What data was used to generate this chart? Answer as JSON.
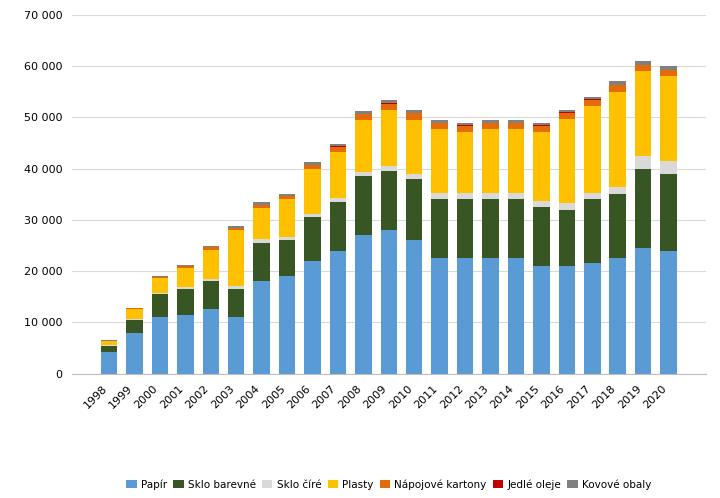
{
  "years": [
    1998,
    1999,
    2000,
    2001,
    2002,
    2003,
    2004,
    2005,
    2006,
    2007,
    2008,
    2009,
    2010,
    2011,
    2012,
    2013,
    2014,
    2015,
    2016,
    2017,
    2018,
    2019,
    2020
  ],
  "papir": [
    4200,
    8000,
    11000,
    11500,
    12500,
    11000,
    18000,
    19000,
    22000,
    24000,
    27000,
    28000,
    26000,
    22500,
    22500,
    22500,
    22500,
    21000,
    21000,
    21500,
    22500,
    24500,
    24000
  ],
  "sklo_barevne": [
    1200,
    2500,
    4500,
    5000,
    5500,
    5500,
    7500,
    7000,
    8500,
    9500,
    11500,
    11500,
    12000,
    11500,
    11500,
    11500,
    11500,
    11500,
    11000,
    12500,
    12500,
    15500,
    15000
  ],
  "sklo_cire": [
    100,
    200,
    300,
    300,
    500,
    500,
    700,
    700,
    700,
    800,
    900,
    1000,
    1000,
    1200,
    1200,
    1200,
    1200,
    1200,
    1200,
    1200,
    1500,
    2500,
    2500
  ],
  "plasty": [
    800,
    1800,
    2800,
    3800,
    5700,
    11000,
    6200,
    7300,
    8800,
    9000,
    10000,
    11000,
    10500,
    12500,
    12000,
    12500,
    12500,
    13500,
    16500,
    17000,
    18500,
    16500,
    16500
  ],
  "napojove_kartony": [
    100,
    200,
    200,
    300,
    400,
    400,
    500,
    600,
    700,
    1000,
    1200,
    1200,
    1300,
    1200,
    1200,
    1200,
    1200,
    1200,
    1200,
    1200,
    1300,
    1200,
    1200
  ],
  "jedle_oleje": [
    0,
    0,
    0,
    0,
    0,
    0,
    0,
    0,
    0,
    100,
    100,
    100,
    100,
    100,
    100,
    100,
    100,
    100,
    100,
    100,
    100,
    100,
    100
  ],
  "kovove_obaly": [
    100,
    100,
    200,
    200,
    300,
    300,
    500,
    500,
    500,
    500,
    500,
    500,
    500,
    500,
    500,
    500,
    500,
    500,
    500,
    500,
    700,
    700,
    700
  ],
  "colors": {
    "papir": "#5B9BD5",
    "sklo_barevne": "#375623",
    "sklo_cire": "#D9D9D9",
    "plasty": "#FFC000",
    "napojove_kartony": "#E36C09",
    "jedle_oleje": "#C00000",
    "kovove_obaly": "#808080"
  },
  "ylim": [
    0,
    70000
  ],
  "yticks": [
    0,
    10000,
    20000,
    30000,
    40000,
    50000,
    60000,
    70000
  ],
  "background_color": "#FFFFFF"
}
